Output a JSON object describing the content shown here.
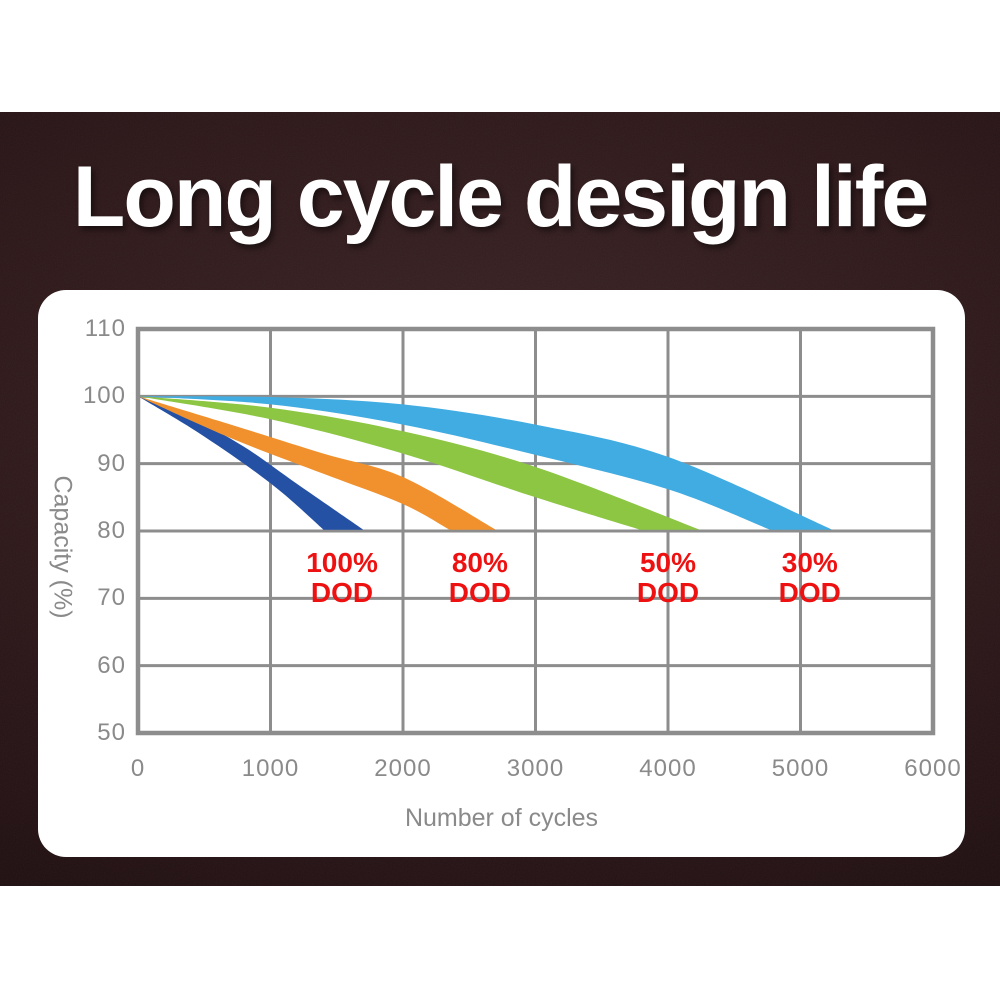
{
  "page": {
    "title": "Long cycle design life"
  },
  "colors": {
    "background_dark": "#2d1719",
    "panel": "#ffffff",
    "grid": "#8d8d8d",
    "axis_text": "#8a8a8a",
    "dod_label_red": "#ee1111",
    "title_text": "#ffffff"
  },
  "chart_data": {
    "type": "area",
    "title": "",
    "xlabel": "Number of cycles",
    "ylabel": "Capacity (%)",
    "xlim": [
      0,
      6000
    ],
    "ylim": [
      50,
      110
    ],
    "xticks": [
      0,
      1000,
      2000,
      3000,
      4000,
      5000,
      6000
    ],
    "yticks": [
      110,
      100,
      90,
      80,
      70,
      60,
      50
    ],
    "grid": true,
    "legend_position": "none",
    "series": [
      {
        "name": "100% DOD",
        "color": "#2451a4",
        "label": {
          "line1": "100%",
          "line2": "DOD",
          "pos": [
            1540,
            73
          ]
        },
        "upper_edge": [
          [
            0,
            100
          ],
          [
            400,
            96.8
          ],
          [
            800,
            92.5
          ],
          [
            1200,
            87
          ],
          [
            1700,
            80.2
          ]
        ],
        "lower_edge": [
          [
            0,
            100
          ],
          [
            400,
            95.3
          ],
          [
            800,
            90
          ],
          [
            1100,
            85.5
          ],
          [
            1400,
            80.2
          ]
        ]
      },
      {
        "name": "80% DOD",
        "color": "#f0912d",
        "label": {
          "line1": "80%",
          "line2": "DOD",
          "pos": [
            2580,
            73
          ]
        },
        "upper_edge": [
          [
            0,
            100
          ],
          [
            700,
            95.8
          ],
          [
            1400,
            91.5
          ],
          [
            2000,
            88
          ],
          [
            2700,
            80.2
          ]
        ],
        "lower_edge": [
          [
            0,
            100
          ],
          [
            700,
            93.8
          ],
          [
            1400,
            88.5
          ],
          [
            2000,
            84
          ],
          [
            2350,
            80.2
          ]
        ]
      },
      {
        "name": "50% DOD",
        "color": "#8cc643",
        "label": {
          "line1": "50%",
          "line2": "DOD",
          "pos": [
            4000,
            73
          ]
        },
        "upper_edge": [
          [
            0,
            100
          ],
          [
            1000,
            98.3
          ],
          [
            2000,
            94.8
          ],
          [
            3000,
            89.5
          ],
          [
            4240,
            80.2
          ]
        ],
        "lower_edge": [
          [
            0,
            100
          ],
          [
            1000,
            96.6
          ],
          [
            2000,
            91.5
          ],
          [
            3000,
            85
          ],
          [
            3790,
            80.2
          ]
        ]
      },
      {
        "name": "30% DOD",
        "color": "#41ace2",
        "label": {
          "line1": "30%",
          "line2": "DOD",
          "pos": [
            5070,
            73
          ]
        },
        "upper_edge": [
          [
            0,
            100
          ],
          [
            1000,
            99.9
          ],
          [
            2000,
            98.8
          ],
          [
            3000,
            95.8
          ],
          [
            4000,
            91
          ],
          [
            5240,
            80.2
          ]
        ],
        "lower_edge": [
          [
            0,
            100
          ],
          [
            1000,
            98.8
          ],
          [
            2000,
            95.8
          ],
          [
            3000,
            91.3
          ],
          [
            4000,
            86.2
          ],
          [
            4770,
            80.2
          ]
        ]
      }
    ]
  }
}
